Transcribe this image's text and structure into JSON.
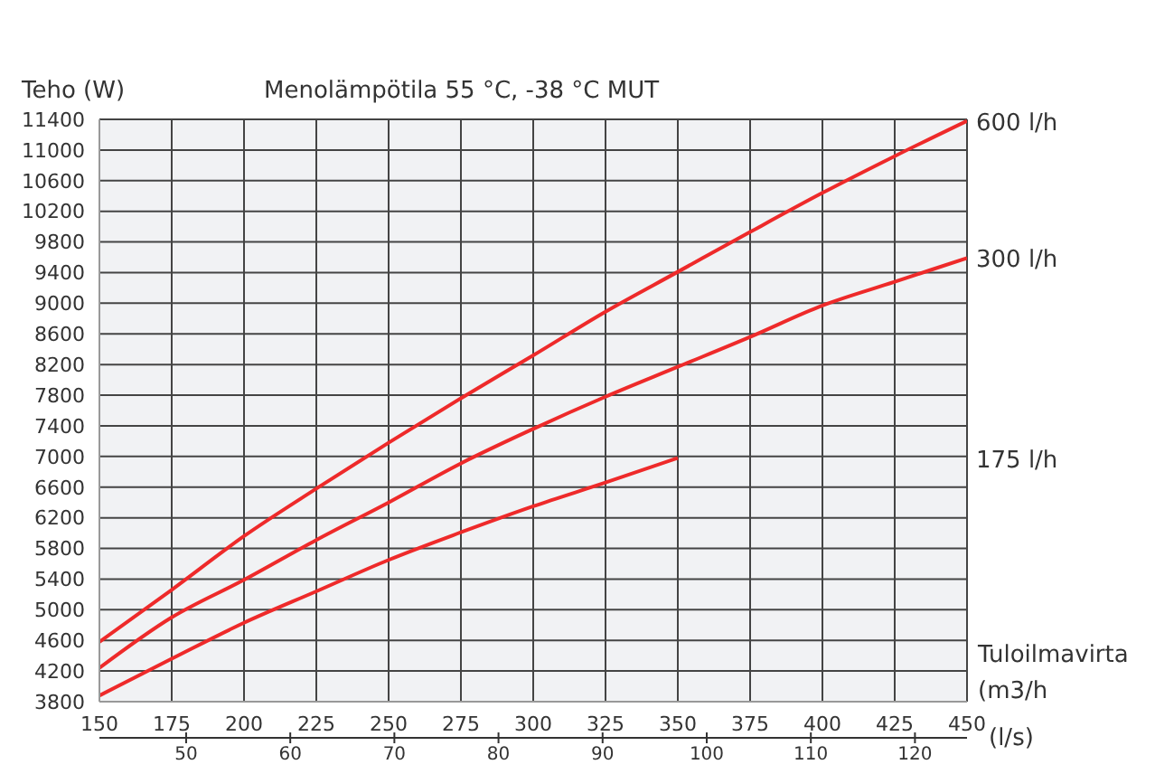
{
  "chart_data": {
    "type": "line",
    "title": "Menolämpötila 55 °C, -38 °C MUT",
    "ylabel": "Teho (W)",
    "xlabel": "Tuloilmavirta (m3/h",
    "x2label": "(l/s)",
    "x": [
      150,
      175,
      200,
      225,
      250,
      275,
      300,
      325,
      350,
      375,
      400,
      425,
      450
    ],
    "series": [
      {
        "name": "600 l/h",
        "color": "#ee2a2a",
        "values": [
          4580,
          5260,
          5960,
          6580,
          7180,
          7760,
          8320,
          8890,
          9410,
          9930,
          10440,
          10920,
          11380
        ]
      },
      {
        "name": "300 l/h",
        "color": "#ee2a2a",
        "values": [
          4240,
          4900,
          5390,
          5910,
          6400,
          6910,
          7360,
          7780,
          8170,
          8560,
          8970,
          9280,
          9590
        ]
      },
      {
        "name": "175 l/h",
        "color": "#ee2a2a",
        "values": [
          3880,
          4360,
          4830,
          5240,
          5650,
          6010,
          6350,
          6660,
          6980,
          null,
          null,
          null,
          null
        ]
      }
    ],
    "xlim": [
      150,
      450
    ],
    "xticks": [
      150,
      175,
      200,
      225,
      250,
      275,
      300,
      325,
      350,
      375,
      400,
      425,
      450
    ],
    "x2lim": [
      41.67,
      125
    ],
    "x2ticks": [
      50,
      60,
      70,
      80,
      90,
      100,
      110,
      120
    ],
    "ylim": [
      3800,
      11400
    ],
    "yticks": [
      3800,
      4200,
      4600,
      5000,
      5400,
      5800,
      6200,
      6600,
      7000,
      7400,
      7800,
      8200,
      8600,
      9000,
      9400,
      9800,
      10200,
      10600,
      11000,
      11400
    ],
    "grid": true,
    "marker": "none",
    "line_style": "solid"
  }
}
